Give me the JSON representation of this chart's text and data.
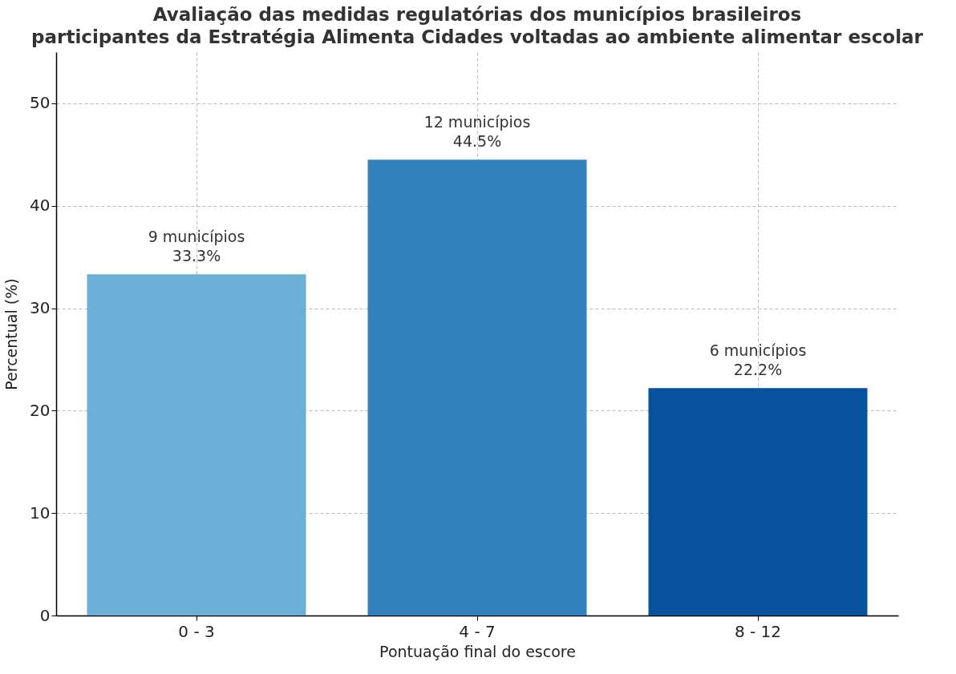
{
  "chart_data": {
    "type": "bar",
    "title": "Avaliação das medidas regulatórias dos municípios brasileiros\nparticipantes da Estratégia Alimenta Cidades voltadas ao ambiente alimentar escolar",
    "xlabel": "Pontuação final do escore",
    "ylabel": "Percentual (%)",
    "categories": [
      "0 - 3",
      "4 - 7",
      "8 - 12"
    ],
    "values": [
      33.3,
      44.5,
      22.2
    ],
    "colors": [
      "#6baed6",
      "#3182bd",
      "#08519c"
    ],
    "value_labels": [
      "9 municípios\n33.3%",
      "12 municípios\n44.5%",
      "6 municípios\n22.2%"
    ],
    "ylim": [
      0,
      55
    ],
    "yticks": [
      0,
      10,
      20,
      30,
      40,
      50
    ],
    "grid": true
  }
}
